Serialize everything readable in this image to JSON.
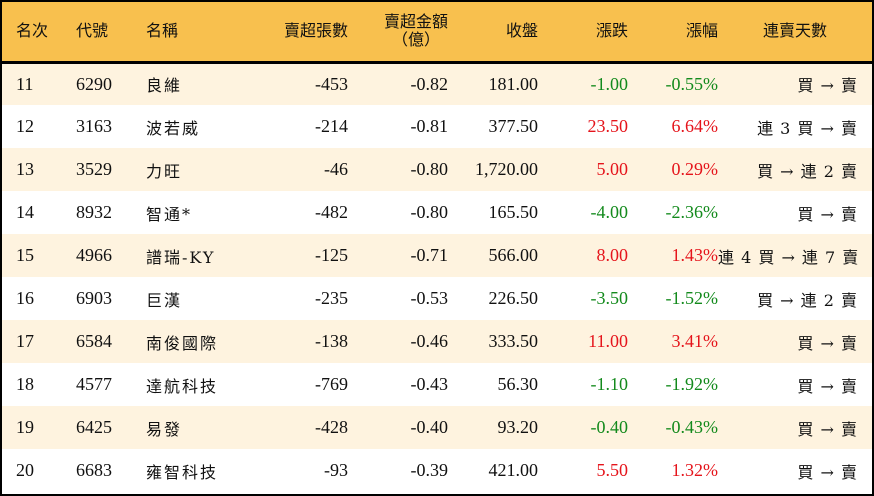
{
  "header": {
    "rank": "名次",
    "code": "代號",
    "name": "名稱",
    "net_sell_lots": "賣超張數",
    "net_sell_amount_line1": "賣超金額",
    "net_sell_amount_line2": "（億）",
    "close": "收盤",
    "change": "漲跌",
    "change_pct": "漲幅",
    "streak": "連賣天數"
  },
  "colors": {
    "header_bg": "#f8c04e",
    "row_odd_bg": "#fef3df",
    "row_even_bg": "#ffffff",
    "up": "#e5141b",
    "down": "#138a1c"
  },
  "rows": [
    {
      "rank": "11",
      "code": "6290",
      "name": "良維",
      "lots": "-453",
      "amount": "-0.82",
      "close": "181.00",
      "change": "-1.00",
      "pct": "-0.55%",
      "dir": "down",
      "streak": "買 → 賣"
    },
    {
      "rank": "12",
      "code": "3163",
      "name": "波若威",
      "lots": "-214",
      "amount": "-0.81",
      "close": "377.50",
      "change": "23.50",
      "pct": "6.64%",
      "dir": "up",
      "streak": "連 3 買 → 賣"
    },
    {
      "rank": "13",
      "code": "3529",
      "name": "力旺",
      "lots": "-46",
      "amount": "-0.80",
      "close": "1,720.00",
      "change": "5.00",
      "pct": "0.29%",
      "dir": "up",
      "streak": "買 → 連 2 賣"
    },
    {
      "rank": "14",
      "code": "8932",
      "name": "智通*",
      "lots": "-482",
      "amount": "-0.80",
      "close": "165.50",
      "change": "-4.00",
      "pct": "-2.36%",
      "dir": "down",
      "streak": "買 → 賣"
    },
    {
      "rank": "15",
      "code": "4966",
      "name": "譜瑞-KY",
      "lots": "-125",
      "amount": "-0.71",
      "close": "566.00",
      "change": "8.00",
      "pct": "1.43%",
      "dir": "up",
      "streak": "連 4 買 → 連 7 賣"
    },
    {
      "rank": "16",
      "code": "6903",
      "name": "巨漢",
      "lots": "-235",
      "amount": "-0.53",
      "close": "226.50",
      "change": "-3.50",
      "pct": "-1.52%",
      "dir": "down",
      "streak": "買 → 連 2 賣"
    },
    {
      "rank": "17",
      "code": "6584",
      "name": "南俊國際",
      "lots": "-138",
      "amount": "-0.46",
      "close": "333.50",
      "change": "11.00",
      "pct": "3.41%",
      "dir": "up",
      "streak": "買 → 賣"
    },
    {
      "rank": "18",
      "code": "4577",
      "name": "達航科技",
      "lots": "-769",
      "amount": "-0.43",
      "close": "56.30",
      "change": "-1.10",
      "pct": "-1.92%",
      "dir": "down",
      "streak": "買 → 賣"
    },
    {
      "rank": "19",
      "code": "6425",
      "name": "易發",
      "lots": "-428",
      "amount": "-0.40",
      "close": "93.20",
      "change": "-0.40",
      "pct": "-0.43%",
      "dir": "down",
      "streak": "買 → 賣"
    },
    {
      "rank": "20",
      "code": "6683",
      "name": "雍智科技",
      "lots": "-93",
      "amount": "-0.39",
      "close": "421.00",
      "change": "5.50",
      "pct": "1.32%",
      "dir": "up",
      "streak": "買 → 賣"
    }
  ]
}
